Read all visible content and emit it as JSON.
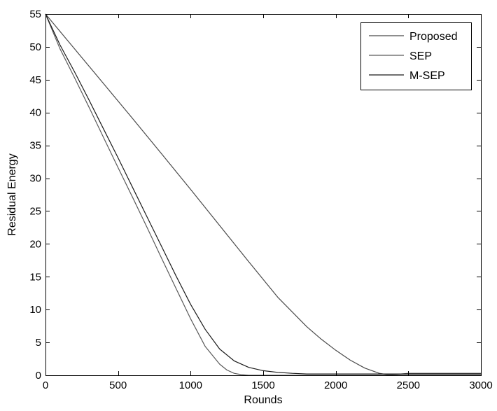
{
  "chart_data": {
    "type": "line",
    "title": "",
    "xlabel": "Rounds",
    "ylabel": "Residual Energy",
    "xlim": [
      0,
      3000
    ],
    "ylim": [
      0,
      55
    ],
    "xticks": [
      0,
      500,
      1000,
      1500,
      2000,
      2500,
      3000
    ],
    "yticks": [
      0,
      5,
      10,
      15,
      20,
      25,
      30,
      35,
      40,
      45,
      50,
      55
    ],
    "grid": false,
    "legend_position": "top-right",
    "series": [
      {
        "name": "Proposed",
        "color": "#4a4a4a",
        "x": [
          0,
          200,
          400,
          600,
          800,
          1000,
          1200,
          1400,
          1600,
          1800,
          1900,
          2000,
          2100,
          2200,
          2300,
          2360,
          2420,
          2500,
          3000
        ],
        "y": [
          55,
          49.7,
          44.4,
          39.1,
          33.7,
          28.3,
          22.8,
          17.3,
          11.9,
          7.4,
          5.5,
          3.8,
          2.3,
          1.1,
          0.3,
          0.1,
          0.15,
          0.3,
          0.3
        ]
      },
      {
        "name": "SEP",
        "color": "#5a5a5a",
        "x": [
          0,
          100,
          200,
          300,
          400,
          500,
          600,
          700,
          800,
          900,
          1000,
          1100,
          1200,
          1250,
          1300,
          1350,
          1400,
          1450,
          1500,
          1550,
          1600,
          3000
        ],
        "y": [
          55,
          49.7,
          45.3,
          40.8,
          36.2,
          31.6,
          27.1,
          22.5,
          17.8,
          13.2,
          8.6,
          4.4,
          1.7,
          0.8,
          0.3,
          0.1,
          0,
          0,
          0,
          0,
          0,
          0
        ]
      },
      {
        "name": "M-SEP",
        "color": "#1a1a1a",
        "x": [
          0,
          100,
          200,
          300,
          400,
          500,
          600,
          700,
          800,
          900,
          1000,
          1100,
          1200,
          1300,
          1400,
          1500,
          1600,
          1700,
          1800,
          2000,
          2500,
          3000
        ],
        "y": [
          55,
          50.3,
          46.2,
          41.9,
          37.5,
          33.1,
          28.6,
          24.1,
          19.6,
          15.1,
          10.8,
          7.0,
          4.0,
          2.2,
          1.2,
          0.7,
          0.45,
          0.3,
          0.2,
          0.2,
          0.2,
          0.2
        ]
      }
    ]
  }
}
